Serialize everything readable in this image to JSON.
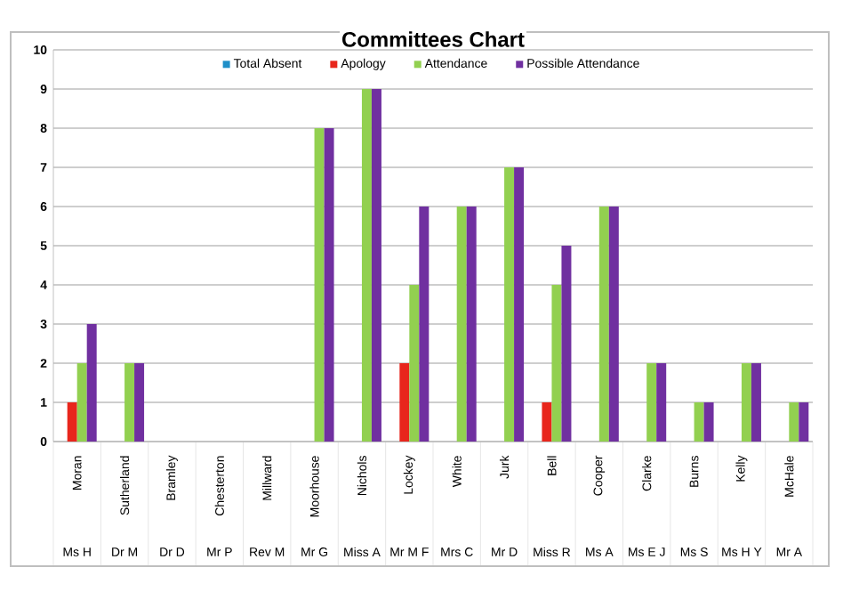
{
  "chart_data": {
    "type": "bar",
    "title": "Committees Chart",
    "categories": [
      "Moran",
      "Sutherland",
      "Bramley",
      "Chesterton",
      "Millward",
      "Moorhouse",
      "Nichols",
      "Lockey",
      "White",
      "Jurk",
      "Bell",
      "Cooper",
      "Clarke",
      "Burns",
      "Kelly",
      "McHale"
    ],
    "series": [
      {
        "name": "Total Absent",
        "color": "#1f8fc8",
        "values": [
          0,
          0,
          0,
          0,
          0,
          0,
          0,
          0,
          0,
          0,
          0,
          0,
          0,
          0,
          0,
          0
        ]
      },
      {
        "name": "Apology",
        "color": "#e8261c",
        "values": [
          1,
          0,
          0,
          0,
          0,
          0,
          0,
          2,
          0,
          0,
          1,
          0,
          0,
          0,
          0,
          0
        ]
      },
      {
        "name": "Attendance",
        "color": "#92d050",
        "values": [
          2,
          2,
          0,
          0,
          0,
          8,
          9,
          4,
          6,
          7,
          4,
          6,
          2,
          1,
          2,
          1
        ]
      },
      {
        "name": "Possible Attendance",
        "color": "#7030a0",
        "values": [
          3,
          2,
          0,
          0,
          0,
          8,
          9,
          6,
          6,
          7,
          5,
          6,
          2,
          1,
          2,
          1
        ]
      }
    ],
    "annotations": [
      "Ms H",
      "Dr M",
      "Dr D",
      "Mr P",
      "Rev M",
      "Mr G",
      "Miss A",
      "Mr M F",
      "Mrs C",
      "Mr D",
      "Miss R",
      "Ms A",
      "Ms E J",
      "Ms S",
      "Ms H Y",
      "Mr A"
    ],
    "ylim": [
      0,
      10
    ],
    "yticks": [
      0,
      1,
      2,
      3,
      4,
      5,
      6,
      7,
      8,
      9,
      10
    ],
    "grid": "y",
    "legend": "top"
  }
}
